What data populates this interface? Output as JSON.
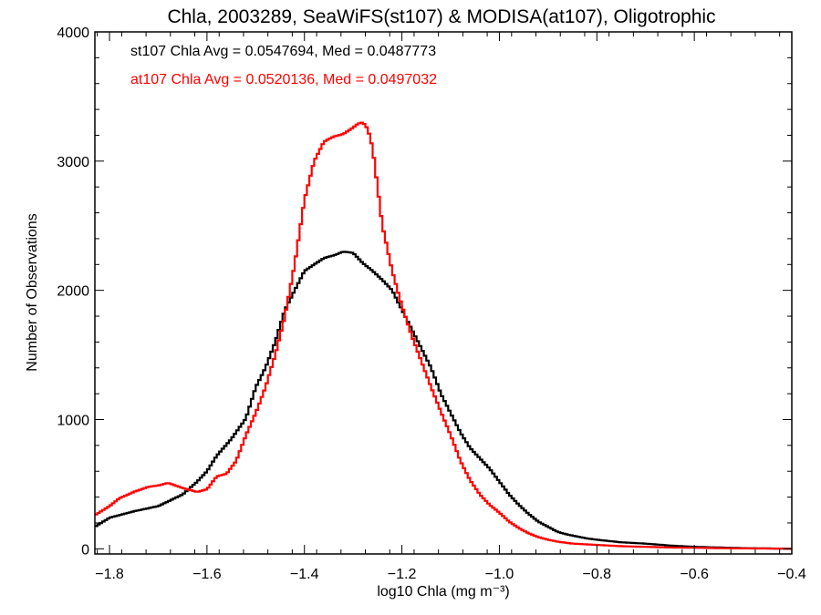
{
  "chart_data": {
    "type": "step",
    "title": "Chla, 2003289, SeaWiFS(st107) & MODISA(at107), Oligotrophic",
    "xlabel": "log10 Chla (mg m⁻³)",
    "ylabel": "Number of Observations",
    "xlim": [
      -1.83,
      -0.4
    ],
    "ylim": [
      -40,
      4000
    ],
    "xticks": [
      -1.8,
      -1.6,
      -1.4,
      -1.2,
      -1.0,
      -0.8,
      -0.6,
      -0.4
    ],
    "xtick_labels": [
      "−1.8",
      "−1.6",
      "−1.4",
      "−1.2",
      "−1.0",
      "−0.8",
      "−0.6",
      "−0.4"
    ],
    "yticks": [
      0,
      1000,
      2000,
      3000,
      4000
    ],
    "ytick_labels": [
      "0",
      "1000",
      "2000",
      "3000",
      "4000"
    ],
    "grid": false,
    "legend_position": "top-left",
    "annotations": [
      {
        "text": "st107 Chla Avg = 0.0547694, Med = 0.0487773",
        "color": "#000000"
      },
      {
        "text": "at107 Chla Avg = 0.0520136, Med = 0.0497032",
        "color": "#ff0000"
      }
    ],
    "series": [
      {
        "color": "#000000",
        "x": [
          -1.83,
          -1.8,
          -1.75,
          -1.7,
          -1.65,
          -1.62,
          -1.6,
          -1.58,
          -1.55,
          -1.52,
          -1.5,
          -1.48,
          -1.46,
          -1.44,
          -1.42,
          -1.4,
          -1.38,
          -1.36,
          -1.34,
          -1.32,
          -1.3,
          -1.28,
          -1.26,
          -1.24,
          -1.22,
          -1.2,
          -1.18,
          -1.16,
          -1.14,
          -1.12,
          -1.1,
          -1.08,
          -1.06,
          -1.04,
          -1.02,
          -1.0,
          -0.98,
          -0.96,
          -0.94,
          -0.92,
          -0.9,
          -0.88,
          -0.86,
          -0.84,
          -0.82,
          -0.8,
          -0.75,
          -0.7,
          -0.65,
          -0.6,
          -0.55,
          -0.5,
          -0.45,
          -0.4
        ],
        "y": [
          170,
          240,
          290,
          330,
          420,
          520,
          600,
          720,
          850,
          1010,
          1250,
          1400,
          1600,
          1850,
          2000,
          2150,
          2200,
          2250,
          2270,
          2300,
          2290,
          2210,
          2150,
          2080,
          2000,
          1850,
          1700,
          1550,
          1400,
          1200,
          1050,
          900,
          780,
          700,
          620,
          520,
          420,
          340,
          270,
          210,
          170,
          130,
          110,
          95,
          80,
          70,
          50,
          40,
          25,
          15,
          10,
          5,
          3,
          0
        ]
      },
      {
        "color": "#ff0000",
        "x": [
          -1.83,
          -1.8,
          -1.78,
          -1.75,
          -1.72,
          -1.7,
          -1.68,
          -1.65,
          -1.62,
          -1.6,
          -1.58,
          -1.56,
          -1.54,
          -1.52,
          -1.5,
          -1.48,
          -1.46,
          -1.44,
          -1.42,
          -1.4,
          -1.38,
          -1.36,
          -1.34,
          -1.32,
          -1.3,
          -1.29,
          -1.28,
          -1.27,
          -1.26,
          -1.25,
          -1.24,
          -1.22,
          -1.2,
          -1.18,
          -1.16,
          -1.14,
          -1.12,
          -1.1,
          -1.08,
          -1.06,
          -1.04,
          -1.02,
          -1.0,
          -0.98,
          -0.96,
          -0.94,
          -0.92,
          -0.9,
          -0.88,
          -0.85,
          -0.8,
          -0.75,
          -0.7,
          -0.65,
          -0.6,
          -0.55,
          -0.5,
          -0.45,
          -0.4
        ],
        "y": [
          260,
          330,
          390,
          440,
          480,
          490,
          510,
          470,
          440,
          460,
          560,
          580,
          680,
          880,
          1050,
          1250,
          1500,
          1800,
          2200,
          2700,
          3000,
          3150,
          3190,
          3210,
          3260,
          3290,
          3300,
          3250,
          3100,
          2800,
          2500,
          2150,
          1880,
          1650,
          1450,
          1250,
          1060,
          880,
          680,
          530,
          420,
          340,
          280,
          210,
          160,
          120,
          90,
          70,
          55,
          40,
          30,
          20,
          15,
          10,
          8,
          5,
          3,
          2,
          0
        ]
      }
    ]
  }
}
